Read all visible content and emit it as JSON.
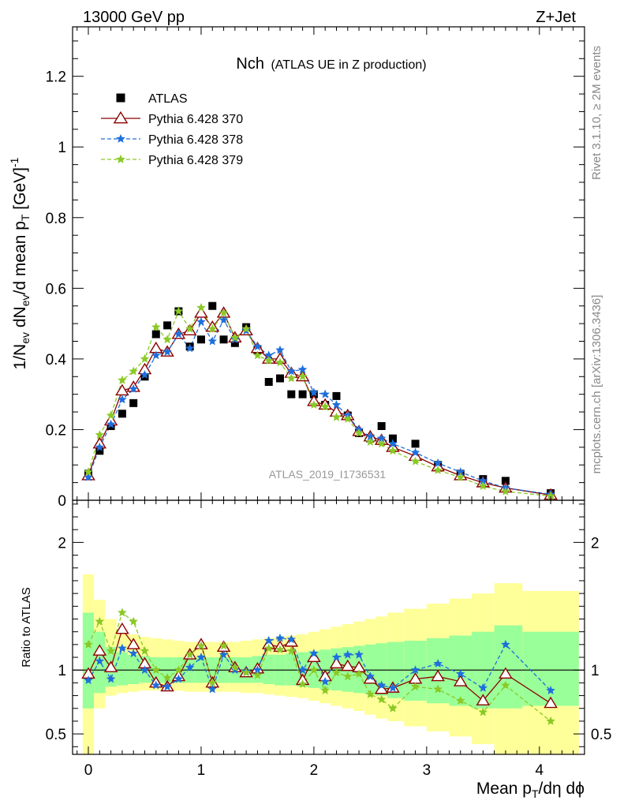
{
  "header": {
    "left": "13000 GeV pp",
    "right": "Z+Jet"
  },
  "side_labels": {
    "top": "Rivet 3.1.10, ≥ 2M events",
    "bottom": "mcplots.cern.ch [arXiv:1306.3436]"
  },
  "watermark": "ATLAS_2019_I1736531",
  "chart_data": [
    {
      "type": "scatter",
      "title": "Nch",
      "subtitle": "(ATLAS UE in Z production)",
      "xlabel": "Mean p_T/dη dϕ",
      "ylabel": "1/N_ev dN_ev/d mean p_T [GeV]^-1",
      "xlim": [
        -0.14,
        4.4
      ],
      "ylim": [
        0,
        1.34
      ],
      "yticks": [
        0,
        0.2,
        0.4,
        0.6,
        0.8,
        1,
        1.2
      ],
      "yticklabels": [
        "0",
        "0.2",
        "0.4",
        "0.6",
        "0.8",
        "1",
        "1.2"
      ],
      "legend_position": "top-left",
      "x": [
        0.0,
        0.1,
        0.2,
        0.3,
        0.4,
        0.5,
        0.6,
        0.7,
        0.8,
        0.9,
        1.0,
        1.1,
        1.2,
        1.3,
        1.4,
        1.5,
        1.6,
        1.7,
        1.8,
        1.9,
        2.0,
        2.1,
        2.2,
        2.3,
        2.4,
        2.5,
        2.6,
        2.7,
        2.9,
        3.1,
        3.3,
        3.5,
        3.7,
        4.1
      ],
      "series": [
        {
          "name": "ATLAS",
          "style": "square",
          "color": "#000000",
          "values": [
            0.075,
            0.14,
            0.21,
            0.245,
            0.275,
            0.35,
            0.47,
            0.495,
            0.535,
            0.435,
            0.455,
            0.55,
            0.455,
            0.445,
            0.49,
            0.425,
            0.335,
            0.345,
            0.3,
            0.3,
            0.3,
            0.27,
            0.295,
            0.24,
            0.19,
            0.175,
            0.21,
            0.175,
            0.16,
            0.1,
            0.075,
            0.06,
            0.055,
            0.02
          ]
        },
        {
          "name": "Pythia 6.428 370",
          "style": "triangle",
          "color": "#8b0000",
          "values": [
            0.07,
            0.16,
            0.225,
            0.31,
            0.32,
            0.37,
            0.43,
            0.42,
            0.47,
            0.48,
            0.53,
            0.49,
            0.53,
            0.46,
            0.48,
            0.43,
            0.4,
            0.4,
            0.36,
            0.35,
            0.28,
            0.27,
            0.25,
            0.24,
            0.195,
            0.18,
            0.17,
            0.15,
            0.125,
            0.095,
            0.07,
            0.05,
            0.035,
            0.015
          ]
        },
        {
          "name": "Pythia 6.428 378",
          "style": "star",
          "color": "#1e6fdc",
          "values": [
            0.065,
            0.15,
            0.215,
            0.285,
            0.315,
            0.355,
            0.41,
            0.42,
            0.47,
            0.43,
            0.505,
            0.45,
            0.51,
            0.455,
            0.48,
            0.435,
            0.41,
            0.425,
            0.365,
            0.37,
            0.305,
            0.3,
            0.27,
            0.24,
            0.2,
            0.18,
            0.175,
            0.16,
            0.135,
            0.105,
            0.08,
            0.055,
            0.035,
            0.017
          ]
        },
        {
          "name": "Pythia 6.428 379",
          "style": "star",
          "color": "#8ac926",
          "values": [
            0.08,
            0.185,
            0.24,
            0.34,
            0.365,
            0.4,
            0.49,
            0.455,
            0.535,
            0.485,
            0.545,
            0.485,
            0.53,
            0.46,
            0.485,
            0.41,
            0.395,
            0.39,
            0.345,
            0.35,
            0.27,
            0.265,
            0.235,
            0.23,
            0.19,
            0.165,
            0.16,
            0.14,
            0.11,
            0.085,
            0.065,
            0.04,
            0.025,
            0.012
          ]
        }
      ]
    },
    {
      "type": "scatter",
      "title": "",
      "xlabel": "Mean p_T/dη dϕ",
      "ylabel": "Ratio to ATLAS",
      "xlim": [
        -0.14,
        4.4
      ],
      "ylim": [
        0.34,
        2.33
      ],
      "xticks": [
        0,
        1,
        2,
        3,
        4
      ],
      "xticklabels": [
        "0",
        "1",
        "2",
        "3",
        "4"
      ],
      "yticks": [
        0.5,
        1,
        2
      ],
      "yticklabels": [
        "0.5",
        "1",
        "2"
      ],
      "x": [
        0.0,
        0.1,
        0.2,
        0.3,
        0.4,
        0.5,
        0.6,
        0.7,
        0.8,
        0.9,
        1.0,
        1.1,
        1.2,
        1.3,
        1.4,
        1.5,
        1.6,
        1.7,
        1.8,
        1.9,
        2.0,
        2.1,
        2.2,
        2.3,
        2.4,
        2.5,
        2.6,
        2.7,
        2.9,
        3.1,
        3.3,
        3.5,
        3.7,
        4.1
      ],
      "bands": {
        "x_edges": [
          -0.05,
          0.05,
          0.15,
          0.25,
          0.35,
          0.45,
          0.55,
          0.65,
          0.75,
          0.85,
          0.95,
          1.05,
          1.15,
          1.25,
          1.35,
          1.45,
          1.55,
          1.65,
          1.75,
          1.85,
          1.95,
          2.05,
          2.15,
          2.25,
          2.35,
          2.45,
          2.55,
          2.65,
          2.8,
          3.0,
          3.2,
          3.4,
          3.6,
          3.85,
          4.35
        ],
        "yellow_low": [
          0.3,
          0.7,
          0.8,
          0.82,
          0.83,
          0.84,
          0.84,
          0.84,
          0.84,
          0.83,
          0.83,
          0.83,
          0.83,
          0.83,
          0.82,
          0.82,
          0.81,
          0.8,
          0.79,
          0.78,
          0.76,
          0.74,
          0.72,
          0.7,
          0.68,
          0.65,
          0.62,
          0.6,
          0.56,
          0.52,
          0.48,
          0.42,
          0.34,
          0.3
        ],
        "yellow_high": [
          1.75,
          1.55,
          1.4,
          1.3,
          1.28,
          1.26,
          1.25,
          1.24,
          1.23,
          1.22,
          1.22,
          1.22,
          1.22,
          1.22,
          1.23,
          1.24,
          1.25,
          1.26,
          1.27,
          1.28,
          1.3,
          1.32,
          1.34,
          1.36,
          1.38,
          1.4,
          1.42,
          1.45,
          1.48,
          1.52,
          1.56,
          1.6,
          1.68,
          1.62
        ],
        "green_low": [
          0.7,
          0.82,
          0.87,
          0.88,
          0.89,
          0.9,
          0.9,
          0.9,
          0.9,
          0.9,
          0.9,
          0.9,
          0.9,
          0.9,
          0.9,
          0.9,
          0.89,
          0.88,
          0.88,
          0.87,
          0.86,
          0.85,
          0.84,
          0.83,
          0.82,
          0.81,
          0.8,
          0.78,
          0.76,
          0.74,
          0.72,
          0.7,
          0.7,
          0.72
        ],
        "green_high": [
          1.45,
          1.3,
          1.18,
          1.14,
          1.12,
          1.11,
          1.1,
          1.1,
          1.1,
          1.1,
          1.1,
          1.1,
          1.1,
          1.1,
          1.1,
          1.11,
          1.12,
          1.12,
          1.13,
          1.14,
          1.15,
          1.16,
          1.17,
          1.18,
          1.19,
          1.2,
          1.21,
          1.22,
          1.23,
          1.25,
          1.27,
          1.3,
          1.35,
          1.3
        ]
      },
      "series": [
        {
          "name": "Pythia 6.428 370",
          "style": "triangle",
          "color": "#8b0000",
          "values": [
            0.97,
            1.15,
            1.02,
            1.32,
            1.2,
            1.05,
            0.9,
            0.87,
            0.95,
            1.12,
            1.2,
            0.9,
            1.18,
            1.02,
            0.98,
            1.01,
            1.2,
            1.18,
            1.22,
            0.92,
            1.1,
            0.95,
            1.05,
            1.03,
            1.02,
            0.93,
            0.85,
            0.86,
            0.93,
            0.95,
            0.91,
            0.76,
            0.97,
            0.74
          ]
        },
        {
          "name": "Pythia 6.428 378",
          "style": "star",
          "color": "#1e6fdc",
          "values": [
            0.92,
            1.07,
            0.93,
            1.17,
            1.13,
            1.0,
            0.88,
            0.87,
            0.93,
            1.02,
            1.1,
            0.85,
            1.12,
            1.0,
            0.99,
            1.0,
            1.23,
            1.25,
            1.24,
            1.0,
            1.13,
            0.91,
            1.1,
            1.12,
            1.12,
            0.95,
            0.88,
            0.86,
            1.0,
            1.05,
            0.97,
            0.86,
            1.2,
            0.84
          ]
        },
        {
          "name": "Pythia 6.428 379",
          "style": "star",
          "color": "#8ac926",
          "values": [
            1.2,
            1.38,
            1.15,
            1.45,
            1.38,
            1.15,
            1.0,
            0.94,
            1.0,
            1.12,
            1.19,
            0.9,
            1.19,
            1.02,
            0.98,
            0.96,
            1.17,
            1.16,
            1.15,
            0.89,
            1.0,
            0.84,
            0.98,
            0.95,
            0.97,
            0.81,
            0.77,
            0.7,
            0.87,
            0.85,
            0.76,
            0.67,
            0.88,
            0.6
          ]
        }
      ]
    }
  ]
}
